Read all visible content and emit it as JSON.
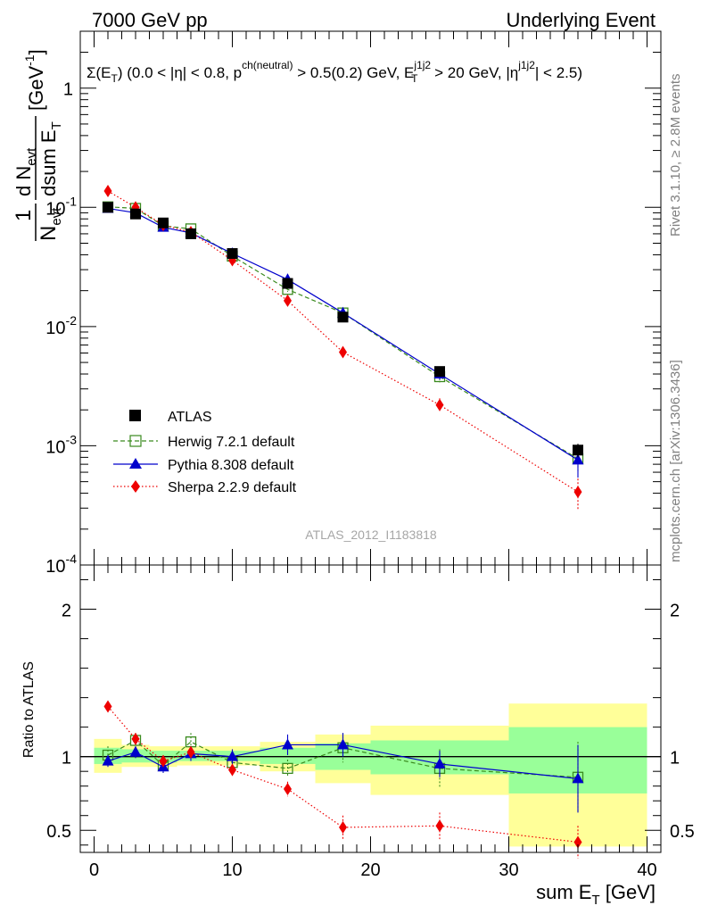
{
  "header": {
    "left": "7000 GeV pp",
    "right": "Underlying Event"
  },
  "side_labels": {
    "rivet": "Rivet 3.1.10, ≥ 2.8M events",
    "mcplots": "mcplots.cern.ch [arXiv:1306.3436]"
  },
  "watermark": "ATLAS_2012_I1183818",
  "cuts_label": {
    "a": "Σ(E",
    "a_sub": "T",
    "b": ") (0.0 < |η| < 0.8, p",
    "b_sup": "ch(neutral)",
    "c": " > 0.5(0.2) GeV, E",
    "c_sup": "j1j2",
    "c_sub": "T",
    "d": " > 20 GeV, |η",
    "d_sup": "j1j2",
    "e": "| < 2.5)"
  },
  "ylabel_main": {
    "one": "1",
    "n": "N",
    "n_sub": "evt",
    "frac_num": "d N",
    "frac_num_sub": "evt",
    "frac_den": "dsum E",
    "frac_den_sub": "T",
    "unit": "[GeV",
    "unit_sup": "-1",
    "unit_end": "]"
  },
  "ylabel_ratio": "Ratio to ATLAS",
  "xlabel": {
    "main": "sum E",
    "sub": "T",
    "unit": " [GeV]"
  },
  "legend": {
    "atlas": "ATLAS",
    "herwig": "Herwig 7.2.1 default",
    "pythia": "Pythia 8.308 default",
    "sherpa": "Sherpa 2.2.9 default"
  },
  "colors": {
    "atlas": "#000000",
    "herwig": "#3a8a1e",
    "pythia": "#0000cc",
    "sherpa": "#ee0000",
    "band_inner": "#99ff99",
    "band_outer": "#ffff99"
  },
  "chart_data": [
    {
      "type": "scatter",
      "panel": "main",
      "y_scale": "log",
      "xlim": [
        -1,
        41
      ],
      "ylim": [
        0.0001,
        3
      ],
      "y_ticks": [
        {
          "value": 0.0001,
          "label": "10^-4"
        },
        {
          "value": 0.001,
          "label": "10^-3"
        },
        {
          "value": 0.01,
          "label": "10^-2"
        },
        {
          "value": 0.1,
          "label": "10^-1"
        },
        {
          "value": 1,
          "label": "1"
        }
      ],
      "series": [
        {
          "name": "ATLAS",
          "x": [
            1,
            3,
            5,
            7,
            10,
            14,
            18,
            25,
            35
          ],
          "y": [
            0.1,
            0.088,
            0.074,
            0.06,
            0.041,
            0.023,
            0.012,
            0.0042,
            0.00092
          ],
          "err": [
            0.004,
            0.003,
            0.003,
            0.003,
            0.002,
            0.0012,
            0.0008,
            0.0003,
            0.00012
          ]
        },
        {
          "name": "Herwig 7.2.1 default",
          "x": [
            1,
            3,
            5,
            7,
            10,
            14,
            18,
            25,
            35
          ],
          "y": [
            0.101,
            0.098,
            0.07,
            0.066,
            0.039,
            0.0205,
            0.013,
            0.0038,
            0.00078
          ],
          "err": [
            0.002,
            0.002,
            0.002,
            0.002,
            0.0015,
            0.0009,
            0.0008,
            0.0004,
            0.00018
          ]
        },
        {
          "name": "Pythia 8.308 default",
          "x": [
            1,
            3,
            5,
            7,
            10,
            14,
            18,
            25,
            35
          ],
          "y": [
            0.098,
            0.09,
            0.068,
            0.061,
            0.041,
            0.0248,
            0.013,
            0.004,
            0.00076
          ],
          "err": [
            0.002,
            0.002,
            0.002,
            0.002,
            0.0015,
            0.001,
            0.0009,
            0.0004,
            0.00022
          ]
        },
        {
          "name": "Sherpa 2.2.9 default",
          "x": [
            1,
            3,
            5,
            7,
            10,
            14,
            18,
            25,
            35
          ],
          "y": [
            0.137,
            0.1,
            0.071,
            0.062,
            0.036,
            0.0165,
            0.0061,
            0.0022,
            0.00041
          ],
          "err": [
            0.003,
            0.003,
            0.002,
            0.002,
            0.0015,
            0.001,
            0.0006,
            0.0003,
            0.00012
          ]
        }
      ]
    },
    {
      "type": "scatter",
      "panel": "ratio",
      "xlim": [
        -1,
        41
      ],
      "ylim": [
        0.35,
        2.3
      ],
      "x_ticks": [
        0,
        10,
        20,
        30,
        40
      ],
      "y_ticks": [
        0.5,
        1,
        2
      ],
      "reference": 1,
      "bands": [
        {
          "x0": 0,
          "x1": 2,
          "inner": [
            0.95,
            1.06
          ],
          "outer": [
            0.89,
            1.12
          ]
        },
        {
          "x0": 2,
          "x1": 4,
          "inner": [
            0.96,
            1.05
          ],
          "outer": [
            0.93,
            1.08
          ]
        },
        {
          "x0": 4,
          "x1": 6,
          "inner": [
            0.96,
            1.04
          ],
          "outer": [
            0.93,
            1.07
          ]
        },
        {
          "x0": 6,
          "x1": 8,
          "inner": [
            0.97,
            1.04
          ],
          "outer": [
            0.94,
            1.07
          ]
        },
        {
          "x0": 8,
          "x1": 12,
          "inner": [
            0.97,
            1.04
          ],
          "outer": [
            0.94,
            1.07
          ]
        },
        {
          "x0": 12,
          "x1": 16,
          "inner": [
            0.95,
            1.06
          ],
          "outer": [
            0.9,
            1.1
          ]
        },
        {
          "x0": 16,
          "x1": 20,
          "inner": [
            0.91,
            1.09
          ],
          "outer": [
            0.82,
            1.15
          ]
        },
        {
          "x0": 20,
          "x1": 30,
          "inner": [
            0.88,
            1.11
          ],
          "outer": [
            0.74,
            1.21
          ]
        },
        {
          "x0": 30,
          "x1": 40,
          "inner": [
            0.75,
            1.2
          ],
          "outer": [
            0.39,
            1.36
          ]
        }
      ],
      "series": [
        {
          "name": "Herwig 7.2.1 default",
          "x": [
            1,
            3,
            5,
            7,
            10,
            14,
            18,
            25,
            35
          ],
          "y": [
            1.01,
            1.11,
            0.94,
            1.1,
            0.96,
            0.92,
            1.06,
            0.92,
            0.86
          ],
          "err": [
            0.06,
            0.05,
            0.05,
            0.06,
            0.05,
            0.06,
            0.1,
            0.13,
            0.24
          ]
        },
        {
          "name": "Pythia 8.308 default",
          "x": [
            1,
            3,
            5,
            7,
            10,
            14,
            18,
            25,
            35
          ],
          "y": [
            0.97,
            1.03,
            0.93,
            1.02,
            1.0,
            1.08,
            1.08,
            0.95,
            0.85
          ],
          "err": [
            0.04,
            0.04,
            0.04,
            0.05,
            0.05,
            0.07,
            0.08,
            0.09,
            0.23
          ]
        },
        {
          "name": "Sherpa 2.2.9 default",
          "x": [
            1,
            3,
            5,
            7,
            10,
            14,
            18,
            25,
            35
          ],
          "y": [
            1.34,
            1.12,
            0.97,
            1.03,
            0.91,
            0.78,
            0.52,
            0.53,
            0.42
          ],
          "err": [
            0.03,
            0.04,
            0.04,
            0.04,
            0.04,
            0.05,
            0.08,
            0.09,
            0.11
          ]
        }
      ]
    }
  ]
}
